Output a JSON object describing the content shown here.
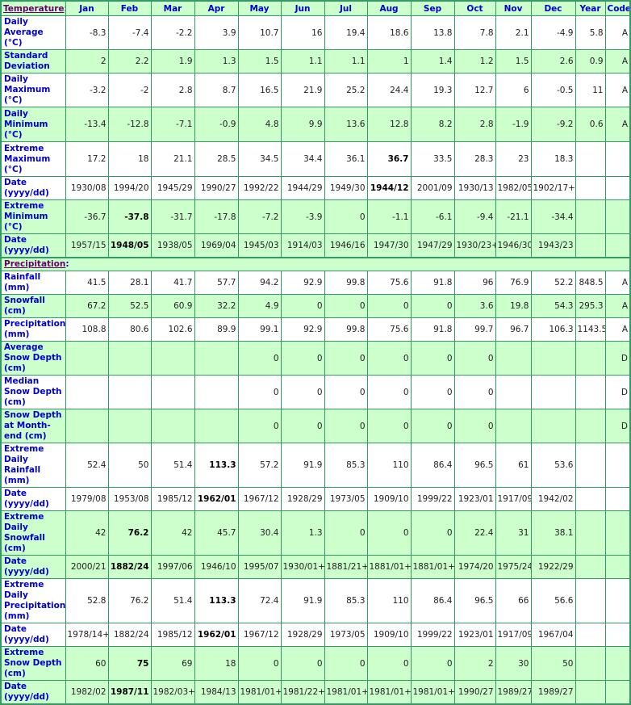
{
  "header": {
    "section": "Temperature",
    "months": [
      "Jan",
      "Feb",
      "Mar",
      "Apr",
      "May",
      "Jun",
      "Jul",
      "Aug",
      "Sep",
      "Oct",
      "Nov",
      "Dec"
    ],
    "year": "Year",
    "code": "Code"
  },
  "colors": {
    "green_row": "#ccffcc",
    "border": "#339966",
    "label": "#0000cc",
    "section_link": "#660066"
  },
  "temperature_rows": [
    {
      "label": "Daily Average (°C)",
      "values": [
        "-8.3",
        "-7.4",
        "-2.2",
        "3.9",
        "10.7",
        "16",
        "19.4",
        "18.6",
        "13.8",
        "7.8",
        "2.1",
        "-4.9"
      ],
      "year": "5.8",
      "code": "A",
      "bg": "w"
    },
    {
      "label": "Standard Deviation",
      "values": [
        "2",
        "2.2",
        "1.9",
        "1.3",
        "1.5",
        "1.1",
        "1.1",
        "1",
        "1.4",
        "1.2",
        "1.5",
        "2.6"
      ],
      "year": "0.9",
      "code": "A",
      "bg": "g"
    },
    {
      "label": "Daily Maximum (°C)",
      "values": [
        "-3.2",
        "-2",
        "2.8",
        "8.7",
        "16.5",
        "21.9",
        "25.2",
        "24.4",
        "19.3",
        "12.7",
        "6",
        "-0.5"
      ],
      "year": "11",
      "code": "A",
      "bg": "w"
    },
    {
      "label": "Daily Minimum (°C)",
      "values": [
        "-13.4",
        "-12.8",
        "-7.1",
        "-0.9",
        "4.8",
        "9.9",
        "13.6",
        "12.8",
        "8.2",
        "2.8",
        "-1.9",
        "-9.2"
      ],
      "year": "0.6",
      "code": "A",
      "bg": "g"
    },
    {
      "label": "Extreme Maximum (°C)",
      "values": [
        "17.2",
        "18",
        "21.1",
        "28.5",
        "34.5",
        "34.4",
        "36.1",
        "36.7",
        "33.5",
        "28.3",
        "23",
        "18.3"
      ],
      "year": "",
      "code": "",
      "bg": "w",
      "record_month": 7
    },
    {
      "label": "Date (yyyy/dd)",
      "values": [
        "1930/08",
        "1994/20",
        "1945/29",
        "1990/27",
        "1992/22",
        "1944/29",
        "1949/30",
        "1944/12",
        "2001/09",
        "1930/13",
        "1982/05",
        "1902/17+"
      ],
      "year": "",
      "code": "",
      "bg": "w",
      "record_month": 7
    },
    {
      "label": "Extreme Minimum (°C)",
      "values": [
        "-36.7",
        "-37.8",
        "-31.7",
        "-17.8",
        "-7.2",
        "-3.9",
        "0",
        "-1.1",
        "-6.1",
        "-9.4",
        "-21.1",
        "-34.4"
      ],
      "year": "",
      "code": "",
      "bg": "g",
      "record_month": 1
    },
    {
      "label": "Date (yyyy/dd)",
      "values": [
        "1957/15",
        "1948/05",
        "1938/05",
        "1969/04",
        "1945/03",
        "1914/03",
        "1946/16",
        "1947/30",
        "1947/29",
        "1930/23+",
        "1946/30",
        "1943/23"
      ],
      "year": "",
      "code": "",
      "bg": "g",
      "record_month": 1
    }
  ],
  "precip_section": "Precipitation",
  "precipitation_rows": [
    {
      "label": "Rainfall (mm)",
      "values": [
        "41.5",
        "28.1",
        "41.7",
        "57.7",
        "94.2",
        "92.9",
        "99.8",
        "75.6",
        "91.8",
        "96",
        "76.9",
        "52.2"
      ],
      "year": "848.5",
      "code": "A",
      "bg": "w"
    },
    {
      "label": "Snowfall (cm)",
      "values": [
        "67.2",
        "52.5",
        "60.9",
        "32.2",
        "4.9",
        "0",
        "0",
        "0",
        "0",
        "3.6",
        "19.8",
        "54.3"
      ],
      "year": "295.3",
      "code": "A",
      "bg": "g"
    },
    {
      "label": "Precipitation (mm)",
      "values": [
        "108.8",
        "80.6",
        "102.6",
        "89.9",
        "99.1",
        "92.9",
        "99.8",
        "75.6",
        "91.8",
        "99.7",
        "96.7",
        "106.3"
      ],
      "year": "1143.5",
      "code": "A",
      "bg": "w"
    },
    {
      "label": "Average Snow Depth (cm)",
      "values": [
        "",
        "",
        "",
        "",
        "0",
        "0",
        "0",
        "0",
        "0",
        "0",
        "",
        ""
      ],
      "year": "",
      "code": "D",
      "bg": "g"
    },
    {
      "label": "Median Snow Depth (cm)",
      "values": [
        "",
        "",
        "",
        "",
        "0",
        "0",
        "0",
        "0",
        "0",
        "0",
        "",
        ""
      ],
      "year": "",
      "code": "D",
      "bg": "w"
    },
    {
      "label": "Snow Depth at Month-end (cm)",
      "values": [
        "",
        "",
        "",
        "",
        "0",
        "0",
        "0",
        "0",
        "0",
        "0",
        "",
        ""
      ],
      "year": "",
      "code": "D",
      "bg": "g"
    },
    {
      "label": "Extreme Daily Rainfall (mm)",
      "values": [
        "52.4",
        "50",
        "51.4",
        "113.3",
        "57.2",
        "91.9",
        "85.3",
        "110",
        "86.4",
        "96.5",
        "61",
        "53.6"
      ],
      "year": "",
      "code": "",
      "bg": "w",
      "record_month": 3
    },
    {
      "label": "Date (yyyy/dd)",
      "values": [
        "1979/08",
        "1953/08",
        "1985/12",
        "1962/01",
        "1967/12",
        "1928/29",
        "1973/05",
        "1909/10",
        "1999/22",
        "1923/01",
        "1917/09",
        "1942/02"
      ],
      "year": "",
      "code": "",
      "bg": "w",
      "record_month": 3
    },
    {
      "label": "Extreme Daily Snowfall (cm)",
      "values": [
        "42",
        "76.2",
        "42",
        "45.7",
        "30.4",
        "1.3",
        "0",
        "0",
        "0",
        "22.4",
        "31",
        "38.1"
      ],
      "year": "",
      "code": "",
      "bg": "g",
      "record_month": 1
    },
    {
      "label": "Date (yyyy/dd)",
      "values": [
        "2000/21",
        "1882/24",
        "1997/06",
        "1946/10",
        "1995/07",
        "1930/01+",
        "1881/21+",
        "1881/01+",
        "1881/01+",
        "1974/20",
        "1975/24",
        "1922/29"
      ],
      "year": "",
      "code": "",
      "bg": "g",
      "record_month": 1
    },
    {
      "label": "Extreme Daily Precipitation (mm)",
      "values": [
        "52.8",
        "76.2",
        "51.4",
        "113.3",
        "72.4",
        "91.9",
        "85.3",
        "110",
        "86.4",
        "96.5",
        "66",
        "56.6"
      ],
      "year": "",
      "code": "",
      "bg": "w",
      "record_month": 3
    },
    {
      "label": "Date (yyyy/dd)",
      "values": [
        "1978/14+",
        "1882/24",
        "1985/12",
        "1962/01",
        "1967/12",
        "1928/29",
        "1973/05",
        "1909/10",
        "1999/22",
        "1923/01",
        "1917/09",
        "1967/04"
      ],
      "year": "",
      "code": "",
      "bg": "w",
      "record_month": 3
    },
    {
      "label": "Extreme Snow Depth (cm)",
      "values": [
        "60",
        "75",
        "69",
        "18",
        "0",
        "0",
        "0",
        "0",
        "0",
        "2",
        "30",
        "50"
      ],
      "year": "",
      "code": "",
      "bg": "g",
      "record_month": 1
    },
    {
      "label": "Date (yyyy/dd)",
      "values": [
        "1982/02",
        "1987/11",
        "1982/03+",
        "1984/13",
        "1981/01+",
        "1981/22+",
        "1981/01+",
        "1981/01+",
        "1981/01+",
        "1990/27",
        "1989/27",
        "1989/27"
      ],
      "year": "",
      "code": "",
      "bg": "g",
      "record_month": 1
    }
  ]
}
